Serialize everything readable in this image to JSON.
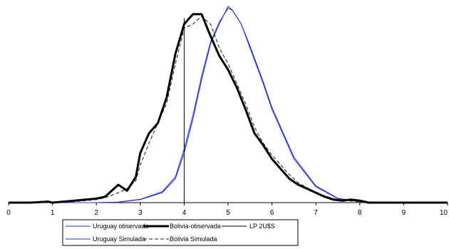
{
  "chart_data": {
    "type": "line",
    "title": "",
    "xlabel": "",
    "ylabel": "",
    "xlim": [
      0,
      10
    ],
    "ylim": [
      0,
      1
    ],
    "x_ticks": [
      "0",
      "1",
      "2",
      "3",
      "4",
      "5",
      "6",
      "7",
      "8",
      "9",
      "10"
    ],
    "grid": false,
    "legend_position": "bottom",
    "reference_line": {
      "name": "LP 2U$S",
      "x": 4
    },
    "series": [
      {
        "name": "Uruguay observada",
        "color": "#1f2fd0",
        "style": "thin",
        "points": [
          [
            0,
            0.0
          ],
          [
            0.5,
            0.0
          ],
          [
            1,
            0.0
          ],
          [
            1.5,
            0.0
          ],
          [
            2,
            0.0
          ],
          [
            2.5,
            0.002
          ],
          [
            3,
            0.015
          ],
          [
            3.5,
            0.05
          ],
          [
            3.8,
            0.12
          ],
          [
            4,
            0.25
          ],
          [
            4.2,
            0.42
          ],
          [
            4.4,
            0.62
          ],
          [
            4.6,
            0.8
          ],
          [
            4.8,
            0.9
          ],
          [
            5,
            0.99
          ],
          [
            5.1,
            0.97
          ],
          [
            5.3,
            0.9
          ],
          [
            5.5,
            0.78
          ],
          [
            5.8,
            0.6
          ],
          [
            6,
            0.47
          ],
          [
            6.2,
            0.37
          ],
          [
            6.5,
            0.22
          ],
          [
            7,
            0.08
          ],
          [
            7.5,
            0.02
          ],
          [
            8,
            0.005
          ],
          [
            8.5,
            0.0
          ],
          [
            9,
            0.0
          ],
          [
            10,
            0.0
          ]
        ]
      },
      {
        "name": "Bolivia-observada",
        "color": "#000000",
        "style": "thick",
        "points": [
          [
            0,
            0.0
          ],
          [
            0.5,
            0.0
          ],
          [
            0.9,
            0.005
          ],
          [
            1,
            0.0
          ],
          [
            1.5,
            0.01
          ],
          [
            2,
            0.02
          ],
          [
            2.2,
            0.03
          ],
          [
            2.5,
            0.09
          ],
          [
            2.7,
            0.06
          ],
          [
            2.9,
            0.13
          ],
          [
            3,
            0.25
          ],
          [
            3.2,
            0.35
          ],
          [
            3.4,
            0.4
          ],
          [
            3.6,
            0.53
          ],
          [
            3.8,
            0.75
          ],
          [
            4,
            0.9
          ],
          [
            4.2,
            0.95
          ],
          [
            4.4,
            0.95
          ],
          [
            4.6,
            0.84
          ],
          [
            4.8,
            0.74
          ],
          [
            5,
            0.67
          ],
          [
            5.2,
            0.58
          ],
          [
            5.4,
            0.47
          ],
          [
            5.6,
            0.35
          ],
          [
            5.8,
            0.29
          ],
          [
            6,
            0.22
          ],
          [
            6.2,
            0.17
          ],
          [
            6.4,
            0.12
          ],
          [
            6.6,
            0.09
          ],
          [
            6.8,
            0.07
          ],
          [
            7,
            0.05
          ],
          [
            7.2,
            0.03
          ],
          [
            7.4,
            0.015
          ],
          [
            7.6,
            0.01
          ],
          [
            7.8,
            0.015
          ],
          [
            8,
            0.01
          ],
          [
            8.2,
            0.0
          ],
          [
            9,
            0.0
          ],
          [
            10,
            0.0
          ]
        ]
      },
      {
        "name": "Uruguay Simulada",
        "color": "#1f2fd0",
        "style": "thin",
        "points": [
          [
            0,
            0.0
          ],
          [
            0.5,
            0.0
          ],
          [
            1,
            0.0
          ],
          [
            1.5,
            0.0
          ],
          [
            2,
            0.0
          ],
          [
            2.5,
            0.003
          ],
          [
            3,
            0.017
          ],
          [
            3.5,
            0.055
          ],
          [
            3.8,
            0.13
          ],
          [
            4,
            0.27
          ],
          [
            4.2,
            0.44
          ],
          [
            4.4,
            0.64
          ],
          [
            4.6,
            0.81
          ],
          [
            4.8,
            0.91
          ],
          [
            5,
            0.98
          ],
          [
            5.1,
            0.97
          ],
          [
            5.3,
            0.9
          ],
          [
            5.5,
            0.79
          ],
          [
            5.8,
            0.61
          ],
          [
            6,
            0.48
          ],
          [
            6.2,
            0.38
          ],
          [
            6.5,
            0.23
          ],
          [
            7,
            0.085
          ],
          [
            7.5,
            0.022
          ],
          [
            8,
            0.006
          ],
          [
            8.5,
            0.0
          ],
          [
            9,
            0.0
          ],
          [
            10,
            0.0
          ]
        ]
      },
      {
        "name": "Bolivia Simulada",
        "color": "#1a1a1a",
        "style": "dashed",
        "points": [
          [
            0,
            0.0
          ],
          [
            0.5,
            0.0
          ],
          [
            1,
            0.002
          ],
          [
            1.5,
            0.005
          ],
          [
            2,
            0.015
          ],
          [
            2.2,
            0.025
          ],
          [
            2.5,
            0.05
          ],
          [
            2.7,
            0.07
          ],
          [
            2.9,
            0.11
          ],
          [
            3,
            0.19
          ],
          [
            3.2,
            0.3
          ],
          [
            3.4,
            0.4
          ],
          [
            3.6,
            0.5
          ],
          [
            3.8,
            0.7
          ],
          [
            4,
            0.88
          ],
          [
            4.2,
            0.9
          ],
          [
            4.4,
            0.94
          ],
          [
            4.6,
            0.9
          ],
          [
            4.8,
            0.78
          ],
          [
            5,
            0.7
          ],
          [
            5.2,
            0.6
          ],
          [
            5.4,
            0.5
          ],
          [
            5.6,
            0.38
          ],
          [
            5.8,
            0.3
          ],
          [
            6,
            0.24
          ],
          [
            6.2,
            0.19
          ],
          [
            6.4,
            0.14
          ],
          [
            6.6,
            0.1
          ],
          [
            6.8,
            0.075
          ],
          [
            7,
            0.05
          ],
          [
            7.2,
            0.035
          ],
          [
            7.4,
            0.02
          ],
          [
            7.6,
            0.012
          ],
          [
            7.8,
            0.008
          ],
          [
            8,
            0.004
          ],
          [
            8.2,
            0.0
          ],
          [
            9,
            0.0
          ],
          [
            10,
            0.0
          ]
        ]
      }
    ]
  }
}
